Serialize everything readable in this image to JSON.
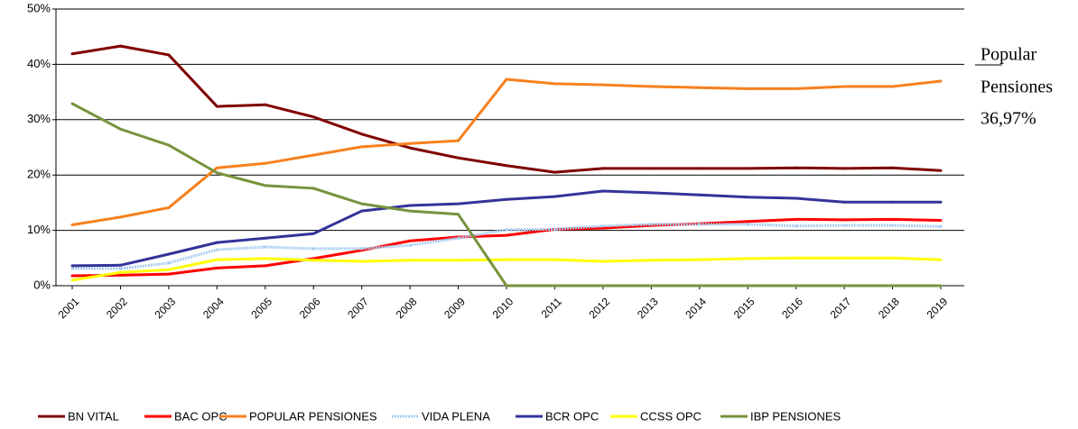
{
  "chart_data": {
    "type": "line",
    "categories": [
      "2001",
      "2002",
      "2003",
      "2004",
      "2005",
      "2006",
      "2007",
      "2008",
      "2009",
      "2010",
      "2011",
      "2012",
      "2013",
      "2014",
      "2015",
      "2016",
      "2017",
      "2018",
      "2019"
    ],
    "series": [
      {
        "name": "BN VITAL",
        "color": "#800000",
        "values": [
          41.9,
          43.3,
          41.7,
          32.4,
          32.7,
          30.5,
          27.4,
          24.9,
          23.1,
          21.7,
          20.5,
          21.2,
          21.2,
          21.2,
          21.2,
          21.3,
          21.2,
          21.3,
          20.8
        ]
      },
      {
        "name": "BAC OPC",
        "color": "#ff0000",
        "values": [
          1.8,
          1.9,
          2.1,
          3.2,
          3.6,
          4.9,
          6.4,
          8.1,
          8.8,
          9.1,
          10.2,
          10.4,
          10.9,
          11.2,
          11.6,
          12.0,
          11.9,
          12.0,
          11.8
        ]
      },
      {
        "name": "POPULAR PENSIONES",
        "color": "#f7801e",
        "values": [
          11.0,
          12.4,
          14.1,
          21.3,
          22.1,
          23.6,
          25.1,
          25.7,
          26.2,
          37.3,
          36.5,
          36.3,
          36.0,
          35.8,
          35.6,
          35.6,
          36.0,
          36.0,
          36.97
        ]
      },
      {
        "name": "VIDA PLENA",
        "color": "#a6cdf2",
        "values": [
          3.1,
          3.1,
          4.1,
          6.5,
          7.0,
          6.7,
          6.7,
          7.3,
          8.6,
          10.1,
          10.2,
          10.8,
          11.1,
          11.1,
          11.1,
          10.8,
          10.9,
          10.9,
          10.7
        ]
      },
      {
        "name": "BCR OPC",
        "color": "#333399",
        "values": [
          3.6,
          3.7,
          5.7,
          7.8,
          8.6,
          9.4,
          13.5,
          14.5,
          14.8,
          15.6,
          16.1,
          17.1,
          16.8,
          16.4,
          16.0,
          15.8,
          15.1,
          15.1,
          15.1
        ]
      },
      {
        "name": "CCSS OPC",
        "color": "#ffff00",
        "values": [
          1.0,
          2.4,
          2.9,
          4.7,
          4.9,
          4.6,
          4.4,
          4.6,
          4.6,
          4.7,
          4.7,
          4.4,
          4.6,
          4.7,
          4.9,
          5.0,
          5.0,
          5.0,
          4.7
        ]
      },
      {
        "name": "IBP PENSIONES",
        "color": "#77933c",
        "values": [
          32.9,
          28.3,
          25.4,
          20.4,
          18.1,
          17.6,
          14.8,
          13.5,
          12.9,
          0,
          0,
          0,
          0,
          0,
          0,
          0,
          0,
          0,
          0
        ]
      }
    ],
    "ylim": [
      0,
      50
    ],
    "yticks": [
      {
        "value": 0,
        "label": "0%"
      },
      {
        "value": 10,
        "label": "10%"
      },
      {
        "value": 20,
        "label": "20%"
      },
      {
        "value": 30,
        "label": "30%"
      },
      {
        "value": 40,
        "label": "40%"
      },
      {
        "value": 50,
        "label": "50%"
      }
    ],
    "grid": true,
    "legend": "bottom",
    "annotation": [
      "Popular",
      "Pensiones",
      "36,97%"
    ]
  }
}
